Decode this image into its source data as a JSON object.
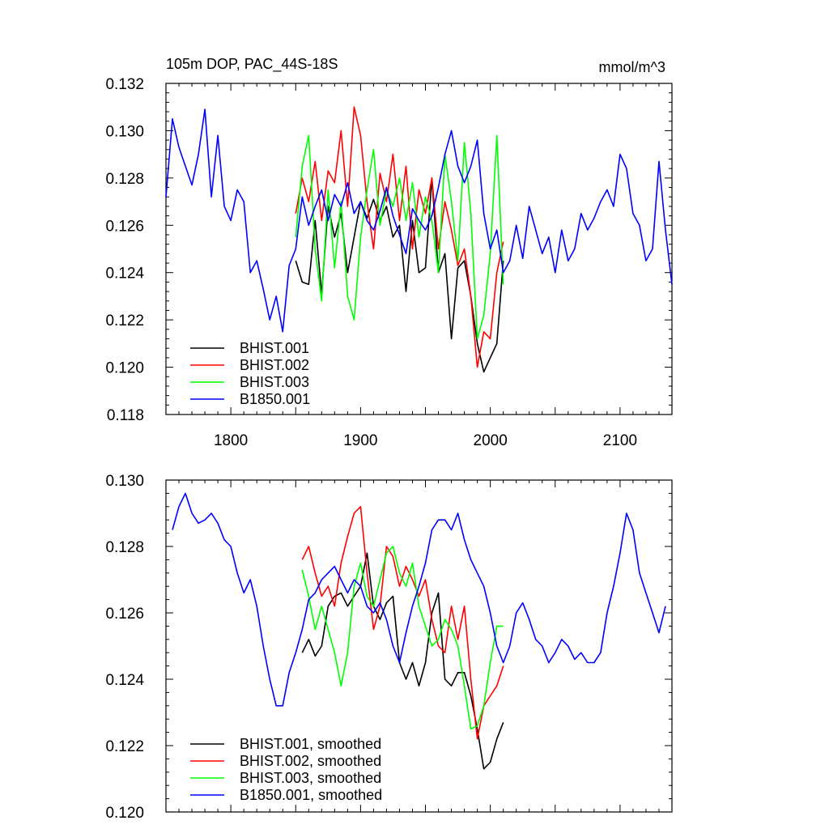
{
  "chart_data": [
    {
      "type": "line",
      "title": "105m DOP, PAC_44S-18S",
      "units": "mmol/m^3",
      "xlim": [
        1750,
        2140
      ],
      "ylim": [
        0.118,
        0.132
      ],
      "x_ticks": [
        1800,
        1900,
        2000,
        2100
      ],
      "x_tick_labels": [
        "1800",
        "1900",
        "2000",
        "2100"
      ],
      "y_ticks": [
        0.118,
        0.12,
        0.122,
        0.124,
        0.126,
        0.128,
        0.13,
        0.132
      ],
      "y_tick_labels": [
        "0.118",
        "0.120",
        "0.122",
        "0.124",
        "0.126",
        "0.128",
        "0.130",
        "0.132"
      ],
      "legend_position": "bottom-left",
      "series": [
        {
          "name": "BHIST.001",
          "color": "#000000",
          "x": [
            1850,
            1855,
            1860,
            1865,
            1870,
            1875,
            1880,
            1885,
            1890,
            1895,
            1900,
            1905,
            1910,
            1915,
            1920,
            1925,
            1930,
            1935,
            1940,
            1945,
            1950,
            1955,
            1960,
            1965,
            1970,
            1975,
            1980,
            1985,
            1990,
            1995,
            2000,
            2005,
            2010
          ],
          "y": [
            0.1245,
            0.1236,
            0.1235,
            0.1262,
            0.1231,
            0.1268,
            0.1255,
            0.1265,
            0.124,
            0.1255,
            0.127,
            0.1263,
            0.1271,
            0.1262,
            0.1268,
            0.1255,
            0.126,
            0.1232,
            0.1262,
            0.124,
            0.1242,
            0.128,
            0.124,
            0.1248,
            0.1212,
            0.1242,
            0.1245,
            0.123,
            0.121,
            0.1198,
            0.1204,
            0.121,
            0.1245
          ]
        },
        {
          "name": "BHIST.002",
          "color": "#ff0000",
          "x": [
            1850,
            1855,
            1860,
            1865,
            1870,
            1875,
            1880,
            1885,
            1890,
            1895,
            1900,
            1905,
            1910,
            1915,
            1920,
            1925,
            1930,
            1935,
            1940,
            1945,
            1950,
            1955,
            1960,
            1965,
            1970,
            1975,
            1980,
            1985,
            1990,
            1995,
            2000,
            2005,
            2010
          ],
          "y": [
            0.1265,
            0.128,
            0.127,
            0.1287,
            0.1262,
            0.1283,
            0.1278,
            0.13,
            0.1268,
            0.131,
            0.1298,
            0.127,
            0.125,
            0.1282,
            0.127,
            0.129,
            0.1262,
            0.1285,
            0.125,
            0.1275,
            0.1265,
            0.128,
            0.125,
            0.127,
            0.1258,
            0.1243,
            0.125,
            0.123,
            0.12,
            0.1215,
            0.1212,
            0.124,
            0.1253
          ]
        },
        {
          "name": "BHIST.003",
          "color": "#00ff00",
          "x": [
            1850,
            1855,
            1860,
            1865,
            1870,
            1875,
            1880,
            1885,
            1890,
            1895,
            1900,
            1905,
            1910,
            1915,
            1920,
            1925,
            1930,
            1935,
            1940,
            1945,
            1950,
            1955,
            1960,
            1965,
            1970,
            1975,
            1980,
            1985,
            1990,
            1995,
            2000,
            2005,
            2010
          ],
          "y": [
            0.1255,
            0.1285,
            0.1298,
            0.125,
            0.1228,
            0.1275,
            0.1242,
            0.127,
            0.123,
            0.122,
            0.1255,
            0.1275,
            0.1292,
            0.126,
            0.1275,
            0.1268,
            0.128,
            0.1262,
            0.1278,
            0.1255,
            0.1272,
            0.1262,
            0.124,
            0.129,
            0.127,
            0.1245,
            0.1295,
            0.1265,
            0.1212,
            0.1222,
            0.1248,
            0.1298,
            0.1235
          ]
        },
        {
          "name": "B1850.001",
          "color": "#0000ff",
          "x": [
            1750,
            1755,
            1760,
            1765,
            1770,
            1775,
            1780,
            1785,
            1790,
            1795,
            1800,
            1805,
            1810,
            1815,
            1820,
            1825,
            1830,
            1835,
            1840,
            1845,
            1850,
            1855,
            1860,
            1865,
            1870,
            1875,
            1880,
            1885,
            1890,
            1895,
            1900,
            1905,
            1910,
            1915,
            1920,
            1925,
            1930,
            1935,
            1940,
            1945,
            1950,
            1955,
            1960,
            1965,
            1970,
            1975,
            1980,
            1985,
            1990,
            1995,
            2000,
            2005,
            2010,
            2015,
            2020,
            2025,
            2030,
            2035,
            2040,
            2045,
            2050,
            2055,
            2060,
            2065,
            2070,
            2075,
            2080,
            2085,
            2090,
            2095,
            2100,
            2105,
            2110,
            2115,
            2120,
            2125,
            2130,
            2135,
            2140
          ],
          "y": [
            0.1272,
            0.1305,
            0.1293,
            0.1285,
            0.1277,
            0.129,
            0.1309,
            0.1272,
            0.1298,
            0.1268,
            0.1262,
            0.1275,
            0.127,
            0.124,
            0.1245,
            0.1233,
            0.122,
            0.123,
            0.1215,
            0.1243,
            0.125,
            0.1272,
            0.126,
            0.1268,
            0.1275,
            0.1262,
            0.1273,
            0.1268,
            0.1278,
            0.1265,
            0.127,
            0.1262,
            0.1258,
            0.1266,
            0.1276,
            0.1264,
            0.1256,
            0.1248,
            0.1267,
            0.1262,
            0.1258,
            0.1264,
            0.1276,
            0.129,
            0.13,
            0.1285,
            0.1278,
            0.1285,
            0.1296,
            0.1265,
            0.125,
            0.1258,
            0.124,
            0.1245,
            0.126,
            0.1246,
            0.1268,
            0.1258,
            0.1248,
            0.1255,
            0.124,
            0.1258,
            0.1245,
            0.125,
            0.1265,
            0.1258,
            0.1263,
            0.127,
            0.1275,
            0.1268,
            0.129,
            0.1284,
            0.1265,
            0.126,
            0.1245,
            0.125,
            0.1287,
            0.1258,
            0.1235
          ]
        }
      ]
    },
    {
      "type": "line",
      "xlim": [
        1750,
        2140
      ],
      "ylim": [
        0.12,
        0.13
      ],
      "y_ticks": [
        0.12,
        0.122,
        0.124,
        0.126,
        0.128,
        0.13
      ],
      "y_tick_labels": [
        "0.120",
        "0.122",
        "0.124",
        "0.126",
        "0.128",
        "0.130"
      ],
      "legend_position": "bottom-left",
      "series": [
        {
          "name": "BHIST.001, smoothed",
          "color": "#000000",
          "x": [
            1855,
            1860,
            1865,
            1870,
            1875,
            1880,
            1885,
            1890,
            1895,
            1900,
            1905,
            1910,
            1915,
            1920,
            1925,
            1930,
            1935,
            1940,
            1945,
            1950,
            1955,
            1960,
            1965,
            1970,
            1975,
            1980,
            1985,
            1990,
            1995,
            2000,
            2005,
            2010
          ],
          "y": [
            0.1248,
            0.1252,
            0.1247,
            0.125,
            0.1262,
            0.1265,
            0.1266,
            0.1262,
            0.1265,
            0.1268,
            0.1278,
            0.1262,
            0.1258,
            0.1263,
            0.1265,
            0.1245,
            0.124,
            0.1245,
            0.1238,
            0.1245,
            0.126,
            0.1266,
            0.124,
            0.1238,
            0.1242,
            0.1242,
            0.1235,
            0.1225,
            0.1213,
            0.1215,
            0.1222,
            0.1227
          ]
        },
        {
          "name": "BHIST.002, smoothed",
          "color": "#ff0000",
          "x": [
            1855,
            1860,
            1865,
            1870,
            1875,
            1880,
            1885,
            1890,
            1895,
            1900,
            1905,
            1910,
            1915,
            1920,
            1925,
            1930,
            1935,
            1940,
            1945,
            1950,
            1955,
            1960,
            1965,
            1970,
            1975,
            1980,
            1985,
            1990,
            1995,
            2000,
            2005,
            2010
          ],
          "y": [
            0.1276,
            0.128,
            0.1272,
            0.1265,
            0.1268,
            0.1262,
            0.1275,
            0.1283,
            0.129,
            0.1292,
            0.1272,
            0.1255,
            0.1262,
            0.128,
            0.1277,
            0.1268,
            0.1274,
            0.127,
            0.1265,
            0.127,
            0.1258,
            0.125,
            0.1248,
            0.1262,
            0.1252,
            0.1262,
            0.124,
            0.1222,
            0.1232,
            0.1235,
            0.1238,
            0.1244
          ]
        },
        {
          "name": "BHIST.003, smoothed",
          "color": "#00ff00",
          "x": [
            1855,
            1860,
            1865,
            1870,
            1875,
            1880,
            1885,
            1890,
            1895,
            1900,
            1905,
            1910,
            1915,
            1920,
            1925,
            1930,
            1935,
            1940,
            1945,
            1950,
            1955,
            1960,
            1965,
            1970,
            1975,
            1980,
            1985,
            1990,
            1995,
            2000,
            2005,
            2010
          ],
          "y": [
            0.1273,
            0.1265,
            0.1255,
            0.1262,
            0.1255,
            0.1248,
            0.1238,
            0.1248,
            0.1268,
            0.1275,
            0.1265,
            0.1262,
            0.127,
            0.1278,
            0.128,
            0.1272,
            0.1268,
            0.1275,
            0.1262,
            0.1256,
            0.125,
            0.1252,
            0.1258,
            0.1255,
            0.125,
            0.1238,
            0.1225,
            0.1226,
            0.1232,
            0.1245,
            0.1256,
            0.1256
          ]
        },
        {
          "name": "B1850.001, smoothed",
          "color": "#0000ff",
          "x": [
            1755,
            1760,
            1765,
            1770,
            1775,
            1780,
            1785,
            1790,
            1795,
            1800,
            1805,
            1810,
            1815,
            1820,
            1825,
            1830,
            1835,
            1840,
            1845,
            1850,
            1855,
            1860,
            1865,
            1870,
            1875,
            1880,
            1885,
            1890,
            1895,
            1900,
            1905,
            1910,
            1915,
            1920,
            1925,
            1930,
            1935,
            1940,
            1945,
            1950,
            1955,
            1960,
            1965,
            1970,
            1975,
            1980,
            1985,
            1990,
            1995,
            2000,
            2005,
            2010,
            2015,
            2020,
            2025,
            2030,
            2035,
            2040,
            2045,
            2050,
            2055,
            2060,
            2065,
            2070,
            2075,
            2080,
            2085,
            2090,
            2095,
            2100,
            2105,
            2110,
            2115,
            2120,
            2125,
            2130,
            2135
          ],
          "y": [
            0.1285,
            0.1292,
            0.1296,
            0.129,
            0.1287,
            0.1288,
            0.129,
            0.1287,
            0.1282,
            0.128,
            0.1272,
            0.1266,
            0.127,
            0.1262,
            0.125,
            0.124,
            0.1232,
            0.1232,
            0.1242,
            0.1248,
            0.1255,
            0.1264,
            0.1266,
            0.127,
            0.1272,
            0.1274,
            0.127,
            0.1266,
            0.127,
            0.1268,
            0.1262,
            0.126,
            0.1263,
            0.1258,
            0.125,
            0.1245,
            0.1254,
            0.1262,
            0.1268,
            0.1275,
            0.1285,
            0.1288,
            0.1288,
            0.1285,
            0.129,
            0.1282,
            0.1276,
            0.1272,
            0.1268,
            0.126,
            0.125,
            0.1245,
            0.125,
            0.126,
            0.1263,
            0.1258,
            0.1252,
            0.125,
            0.1245,
            0.1248,
            0.1252,
            0.125,
            0.1246,
            0.1248,
            0.1245,
            0.1245,
            0.1248,
            0.126,
            0.1268,
            0.1278,
            0.129,
            0.1285,
            0.1272,
            0.1266,
            0.126,
            0.1254,
            0.1262
          ]
        }
      ]
    }
  ]
}
